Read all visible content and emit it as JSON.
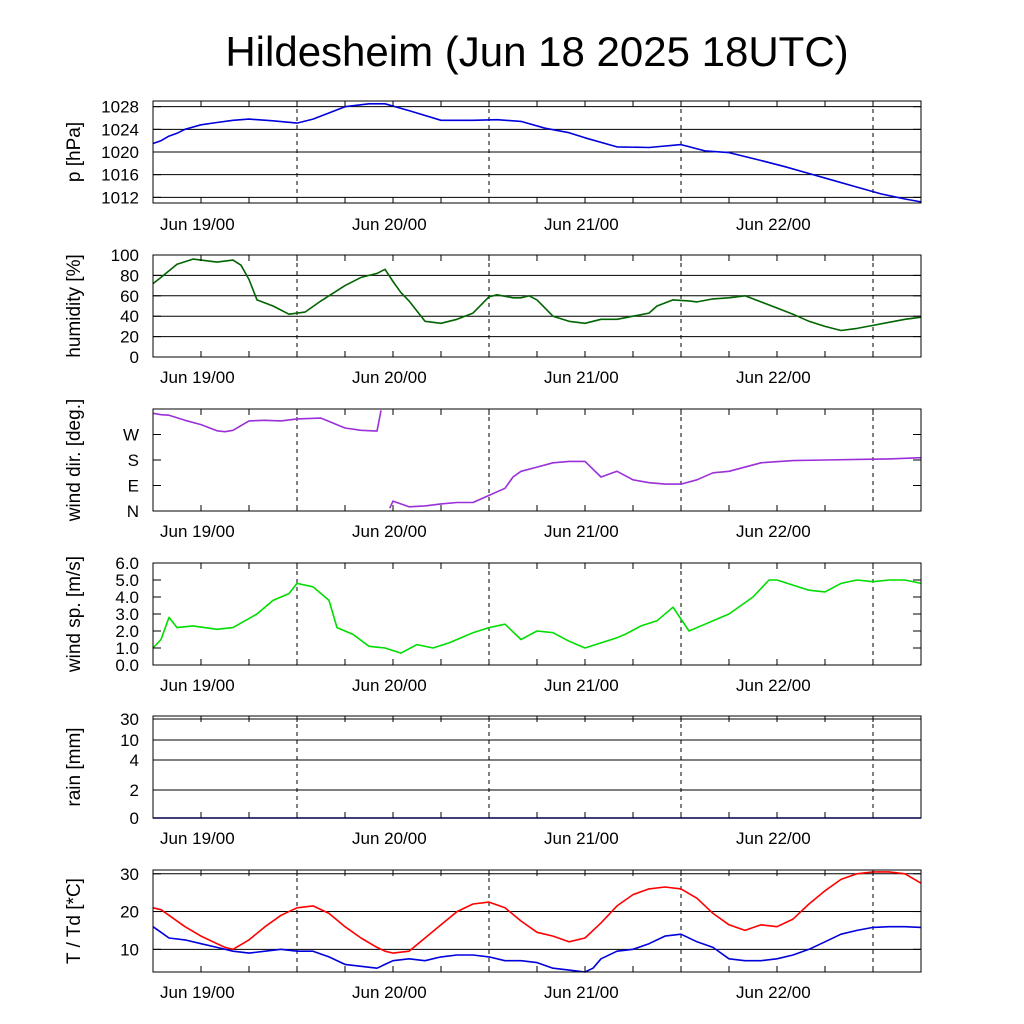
{
  "title": "Hildesheim (Jun 18 2025 18UTC)",
  "x_tick_labels": [
    "Jun 19/00",
    "Jun 20/00",
    "Jun 21/00",
    "Jun 22/00"
  ],
  "chart_data": [
    {
      "type": "line",
      "ylabel": "p [hPa]",
      "ylim": [
        1011,
        1029
      ],
      "yticks": [
        1012,
        1016,
        1020,
        1024,
        1028
      ],
      "ytick_labels": [
        "1012",
        "1016",
        "1020",
        "1024",
        "1028"
      ],
      "gridlines": [
        1012,
        1016,
        1020,
        1024,
        1028
      ],
      "xlim": [
        0,
        96
      ],
      "series": [
        {
          "color": "#0000dd",
          "x": [
            0,
            1,
            2,
            3,
            4,
            6,
            8,
            10,
            12,
            15,
            18,
            20,
            24,
            27,
            29,
            32,
            36,
            40,
            43,
            46,
            49,
            52,
            54,
            58,
            62,
            66,
            69,
            72,
            76,
            79,
            82,
            85,
            88,
            91,
            94,
            96
          ],
          "y": [
            1021.5,
            1022,
            1022.8,
            1023.3,
            1024,
            1024.8,
            1025.2,
            1025.6,
            1025.8,
            1025.5,
            1025.1,
            1025.8,
            1028,
            1028.5,
            1028.5,
            1027.3,
            1025.6,
            1025.6,
            1025.7,
            1025.4,
            1024.2,
            1023.4,
            1022.5,
            1020.9,
            1020.8,
            1021.3,
            1020.2,
            1019.9,
            1018.5,
            1017.4,
            1016.2,
            1015,
            1013.8,
            1012.6,
            1011.7,
            1011.2
          ]
        }
      ]
    },
    {
      "type": "line",
      "ylabel": "humidity [%]",
      "ylim": [
        0,
        100
      ],
      "yticks": [
        0,
        20,
        40,
        60,
        80,
        100
      ],
      "ytick_labels": [
        "0",
        "20",
        "40",
        "60",
        "80",
        "100"
      ],
      "gridlines": [
        20,
        40,
        60,
        80
      ],
      "xlim": [
        0,
        96
      ],
      "series": [
        {
          "color": "#006400",
          "x": [
            0,
            1,
            3,
            5,
            6,
            8,
            10,
            11,
            12,
            13,
            15,
            17,
            19,
            21,
            24,
            26,
            28,
            29,
            30,
            31,
            32,
            34,
            36,
            38,
            40,
            42,
            43,
            45,
            46,
            47,
            48,
            50,
            52,
            54,
            56,
            58,
            60,
            62,
            63,
            65,
            67,
            68,
            70,
            72,
            74,
            76,
            78,
            80,
            82,
            84,
            86,
            88,
            90,
            92,
            94,
            96
          ],
          "y": [
            72,
            78,
            91,
            96,
            95,
            93,
            95,
            90,
            76,
            56,
            50,
            42,
            44,
            55,
            70,
            78,
            82,
            86,
            74,
            63,
            55,
            35,
            33,
            37,
            43,
            59,
            61,
            58,
            58,
            60,
            56,
            40,
            35,
            33,
            37,
            37,
            40,
            43,
            50,
            56,
            55,
            54,
            57,
            58,
            60,
            54,
            48,
            42,
            35,
            30,
            26,
            28,
            31,
            34,
            37,
            39
          ]
        }
      ]
    },
    {
      "type": "line",
      "ylabel": "wind dir. [deg.]",
      "ylim": [
        0,
        360
      ],
      "yticks": [
        0,
        90,
        180,
        270
      ],
      "ytick_labels": [
        "N",
        "E",
        "S",
        "W"
      ],
      "gridlines": [],
      "xlim": [
        0,
        96
      ],
      "series": [
        {
          "color": "#9b30d8",
          "x": [
            0,
            1,
            2,
            4,
            6,
            8,
            9,
            10,
            12,
            14,
            16,
            18,
            21,
            24,
            26,
            28,
            28.5
          ],
          "y": [
            345,
            340,
            338,
            320,
            305,
            283,
            280,
            285,
            318,
            320,
            318,
            325,
            328,
            293,
            285,
            282,
            355
          ]
        },
        {
          "color": "#9b30d8",
          "x": [
            29.6,
            30,
            32,
            34,
            36,
            38,
            40,
            42,
            44,
            45,
            46,
            48,
            50,
            52,
            54,
            56,
            58,
            60,
            62,
            64,
            66,
            68,
            70,
            72,
            76,
            80,
            84,
            88,
            92,
            96
          ],
          "y": [
            10,
            35,
            15,
            18,
            25,
            30,
            30,
            55,
            80,
            120,
            140,
            155,
            170,
            175,
            175,
            120,
            140,
            110,
            100,
            95,
            95,
            110,
            135,
            140,
            170,
            178,
            180,
            182,
            184,
            188
          ]
        }
      ]
    },
    {
      "type": "line",
      "ylabel": "wind sp. [m/s]",
      "ylim": [
        0,
        6
      ],
      "yticks": [
        0,
        1,
        2,
        3,
        4,
        5,
        6
      ],
      "ytick_labels": [
        "0.0",
        "1.0",
        "2.0",
        "3.0",
        "4.0",
        "5.0",
        "6.0"
      ],
      "gridlines": [],
      "xlim": [
        0,
        96
      ],
      "series": [
        {
          "color": "#00dd00",
          "x": [
            0,
            1,
            2,
            3,
            5,
            8,
            10,
            13,
            15,
            17,
            18,
            20,
            22,
            23,
            25,
            27,
            29,
            31,
            33,
            35,
            37,
            38,
            40,
            42,
            44,
            46,
            48,
            50,
            52,
            54,
            56,
            58,
            59,
            61,
            63,
            65,
            67,
            69,
            71,
            72,
            75,
            77,
            78,
            80,
            82,
            84,
            86,
            88,
            90,
            92,
            94,
            96
          ],
          "y": [
            1.0,
            1.5,
            2.8,
            2.2,
            2.3,
            2.1,
            2.2,
            3.0,
            3.8,
            4.2,
            4.8,
            4.6,
            3.8,
            2.2,
            1.8,
            1.1,
            1.0,
            0.7,
            1.2,
            1.0,
            1.3,
            1.5,
            1.9,
            2.2,
            2.4,
            1.5,
            2.0,
            1.9,
            1.4,
            1.0,
            1.3,
            1.6,
            1.8,
            2.3,
            2.6,
            3.4,
            2.0,
            2.4,
            2.8,
            3.0,
            4.0,
            5.0,
            5.0,
            4.7,
            4.4,
            4.3,
            4.8,
            5.0,
            4.9,
            5.0,
            5.0,
            4.8
          ]
        }
      ]
    },
    {
      "type": "line",
      "ylabel": "rain [mm]",
      "ylim": [
        0,
        30
      ],
      "yticks": [
        0,
        2,
        4,
        10,
        30
      ],
      "ytick_labels": [
        "0",
        "2",
        "4",
        "10",
        "30"
      ],
      "gridlines": [
        2,
        4,
        10,
        30
      ],
      "xlim": [
        0,
        96
      ],
      "series": [
        {
          "color": "#0000dd",
          "x": [
            0,
            96
          ],
          "y": [
            0,
            0
          ]
        }
      ]
    },
    {
      "type": "line",
      "ylabel": "T / Td [*C]",
      "ylim": [
        4,
        31
      ],
      "yticks": [
        10,
        20,
        30
      ],
      "ytick_labels": [
        "10",
        "20",
        "30"
      ],
      "gridlines": [
        10,
        20,
        30
      ],
      "xlim": [
        0,
        96
      ],
      "series": [
        {
          "color": "#ff0000",
          "x": [
            0,
            1,
            2,
            4,
            6,
            8,
            9,
            10,
            12,
            14,
            16,
            18,
            20,
            22,
            24,
            26,
            28,
            29,
            30,
            32,
            34,
            36,
            38,
            40,
            42,
            44,
            46,
            48,
            50,
            52,
            54,
            56,
            58,
            60,
            62,
            64,
            66,
            68,
            70,
            72,
            74,
            76,
            78,
            80,
            82,
            84,
            86,
            88,
            90,
            92,
            94,
            96
          ],
          "y": [
            21,
            20.5,
            19,
            16,
            13.5,
            11.5,
            10.5,
            10,
            12.5,
            16,
            19,
            21,
            21.5,
            19.5,
            16,
            13,
            10.5,
            9.5,
            9,
            9.5,
            13,
            16.5,
            20,
            22,
            22.5,
            21,
            17.5,
            14.5,
            13.5,
            12,
            13,
            17,
            21.5,
            24.5,
            26,
            26.5,
            26,
            23.5,
            19.5,
            16.5,
            15,
            16.5,
            16,
            18,
            22,
            25.5,
            28.5,
            30,
            30.5,
            30.5,
            30,
            27.5
          ]
        },
        {
          "color": "#0000dd",
          "x": [
            0,
            1,
            2,
            4,
            6,
            8,
            10,
            12,
            14,
            16,
            18,
            20,
            22,
            24,
            26,
            28,
            29,
            30,
            32,
            34,
            36,
            38,
            40,
            42,
            44,
            46,
            48,
            50,
            52,
            54,
            55,
            56,
            58,
            60,
            62,
            64,
            66,
            68,
            70,
            72,
            74,
            76,
            78,
            80,
            82,
            84,
            86,
            88,
            90,
            92,
            94,
            96
          ],
          "y": [
            16,
            14.5,
            13,
            12.5,
            11.5,
            10.5,
            9.5,
            9,
            9.5,
            10,
            9.5,
            9.5,
            8,
            6,
            5.5,
            5,
            6,
            7,
            7.5,
            7,
            8,
            8.5,
            8.5,
            8,
            7,
            7,
            6.5,
            5,
            4.5,
            4,
            5,
            7.5,
            9.5,
            10,
            11.5,
            13.5,
            14,
            12,
            10.5,
            7.5,
            7,
            7,
            7.5,
            8.5,
            10,
            12,
            14,
            15,
            15.8,
            16,
            16,
            15.8
          ]
        }
      ]
    }
  ]
}
